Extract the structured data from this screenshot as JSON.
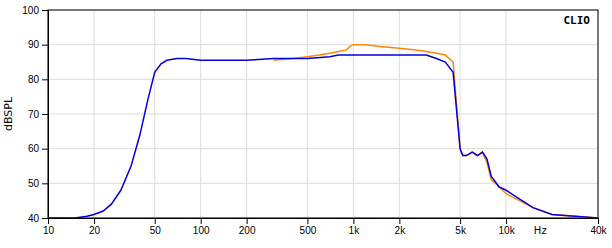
{
  "chart_data": {
    "type": "line",
    "ylabel": "dBSPL",
    "xlabel": "Hz",
    "annotations": [
      "CLIO"
    ],
    "log": "x",
    "grid": true,
    "xlim": [
      10,
      40000
    ],
    "ylim": [
      40,
      100
    ],
    "yticks": [
      40,
      50,
      60,
      70,
      80,
      90,
      100
    ],
    "xticks": [
      10,
      20,
      50,
      100,
      200,
      500,
      {
        "value": 1000,
        "label": "1k"
      },
      {
        "value": 2000,
        "label": "2k"
      },
      {
        "value": 5000,
        "label": "5k"
      },
      {
        "value": 10000,
        "label": "10k"
      },
      {
        "value": 40000,
        "label": "40k"
      }
    ],
    "series": [
      {
        "color": "#0000dd",
        "x": [
          10,
          12,
          15,
          18,
          20,
          23,
          26,
          30,
          35,
          40,
          45,
          50,
          55,
          60,
          70,
          80,
          100,
          150,
          200,
          300,
          500,
          700,
          800,
          900,
          1000,
          1200,
          1500,
          2000,
          2500,
          3000,
          3500,
          4000,
          4500,
          5000,
          5200,
          5500,
          6000,
          6500,
          7000,
          7500,
          8000,
          9000,
          10000,
          15000,
          20000,
          40000
        ],
        "values": [
          40,
          40,
          40,
          40.5,
          41,
          42,
          44,
          48,
          55,
          64,
          74,
          82,
          84.5,
          85.5,
          86,
          86,
          85.5,
          85.5,
          85.5,
          86,
          86,
          86.5,
          87,
          87,
          87,
          87,
          87,
          87,
          87,
          87,
          86,
          85,
          82,
          60,
          58,
          58,
          59,
          58,
          59,
          57,
          52,
          49,
          48,
          43,
          41,
          40
        ]
      },
      {
        "color": "#ff8800",
        "x": [
          300,
          400,
          500,
          600,
          700,
          800,
          900,
          950,
          1000,
          1200,
          1500,
          2000,
          2500,
          3000,
          3500,
          4000,
          4500,
          5000,
          5200,
          5500,
          6000,
          6500,
          7000,
          7500,
          8000,
          9000,
          10000,
          15000,
          20000,
          40000
        ],
        "values": [
          85.5,
          86,
          86.5,
          87,
          87.5,
          88,
          88.5,
          89.5,
          90,
          90,
          89.5,
          89,
          88.5,
          88,
          87.5,
          87,
          85,
          60,
          58,
          58,
          59,
          58,
          59,
          56,
          51,
          49,
          47,
          43,
          41,
          40
        ]
      }
    ]
  }
}
